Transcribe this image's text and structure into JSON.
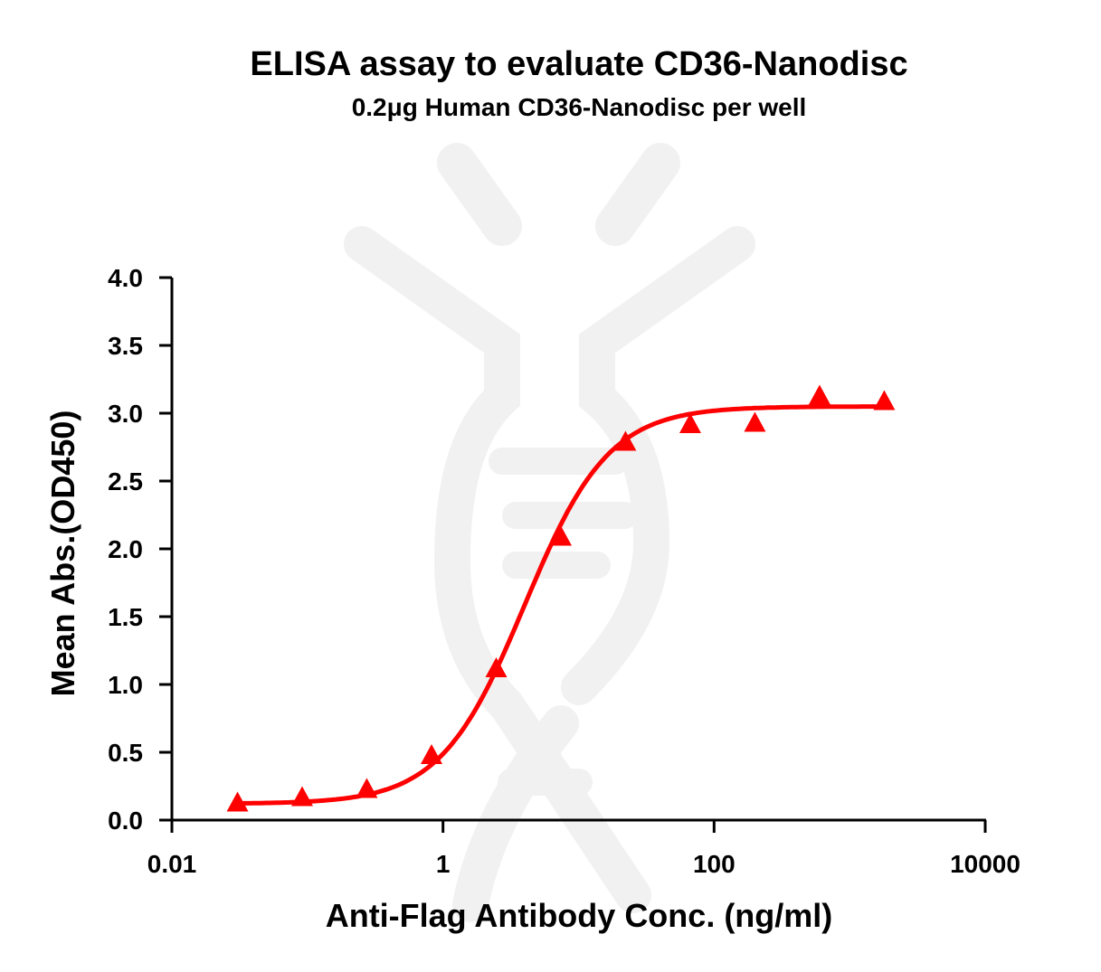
{
  "chart_data": {
    "type": "scatter",
    "title": "ELISA assay to evaluate CD36-Nanodisc",
    "subtitle": "0.2μg Human CD36-Nanodisc per well",
    "xlabel": "Anti-Flag Antibody Conc. (ng/ml)",
    "ylabel": "Mean Abs.(OD450)",
    "xscale": "log",
    "xlim": [
      0.01,
      10000
    ],
    "ylim": [
      0,
      4.0
    ],
    "xticks": [
      "0.01",
      "1",
      "100",
      "10000"
    ],
    "xtick_values": [
      0.01,
      1,
      100,
      10000
    ],
    "yticks": [
      "0.0",
      "0.5",
      "1.0",
      "1.5",
      "2.0",
      "2.5",
      "3.0",
      "3.5",
      "4.0"
    ],
    "ytick_values": [
      0,
      0.5,
      1,
      1.5,
      2,
      2.5,
      3,
      3.5,
      4
    ],
    "grid": false,
    "color": "#ff0000",
    "marker": "triangle",
    "series": [
      {
        "x": [
          0.0305,
          0.0914,
          0.274,
          0.823,
          2.47,
          7.41,
          22.2,
          66.7,
          200,
          600,
          1800
        ],
        "y": [
          0.11,
          0.15,
          0.21,
          0.46,
          1.1,
          2.07,
          2.77,
          2.9,
          2.91,
          3.11,
          3.07
        ]
      }
    ],
    "fit": {
      "model": "4PL",
      "bottom": 0.12,
      "top": 3.05,
      "ec50": 4.0,
      "hill": 1.4
    }
  }
}
